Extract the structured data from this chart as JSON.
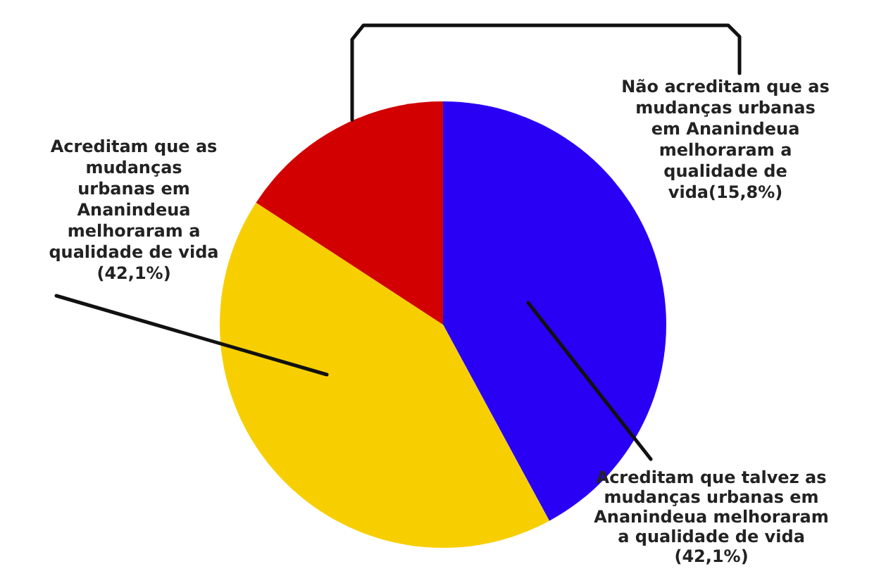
{
  "chart_data": {
    "type": "pie",
    "categories": [
      "Acreditam que talvez as\nmudanças urbanas em\nAnanindeua melhoraram\na qualidade de vida\n(42,1%)",
      "Acreditam que as\nmudanças\nurbanas em\nAnanindeua\nmelhoraram a\nqualidade de vida\n(42,1%)",
      "Não acreditam que as\nmudanças urbanas\nem Ananindeua\nmelhoraram a\nqualidade de\nvida(15,8%)"
    ],
    "values": [
      42.1,
      42.1,
      15.8
    ],
    "colors": [
      "#2a00f5",
      "#f7cf00",
      "#d20000"
    ],
    "legend": false
  }
}
